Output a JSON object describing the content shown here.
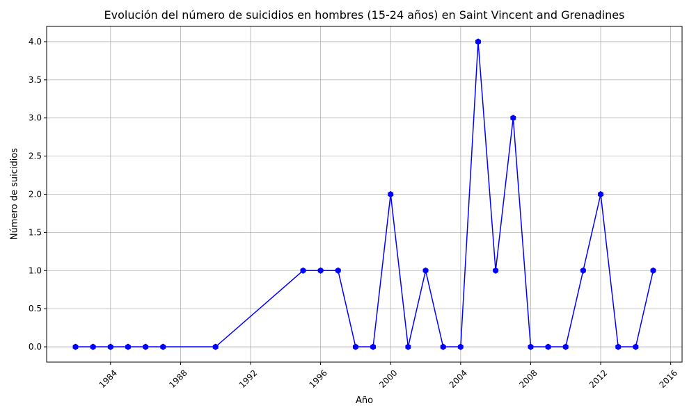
{
  "chart_data": {
    "type": "line",
    "title": "Evolución del número de suicidios en hombres (15-24 años) en Saint Vincent and Grenadines",
    "xlabel": "Año",
    "ylabel": "Número de suicidios",
    "x": [
      1982,
      1983,
      1984,
      1985,
      1986,
      1987,
      1990,
      1995,
      1996,
      1997,
      1998,
      1999,
      2000,
      2001,
      2002,
      2003,
      2004,
      2005,
      2006,
      2007,
      2008,
      2009,
      2010,
      2011,
      2012,
      2013,
      2014,
      2015
    ],
    "series": [
      {
        "values": [
          0,
          0,
          0,
          0,
          0,
          0,
          0,
          1,
          1,
          1,
          0,
          0,
          2,
          0,
          1,
          0,
          0,
          4,
          1,
          3,
          0,
          0,
          0,
          1,
          2,
          0,
          0,
          1
        ],
        "color": "#0000ff",
        "marker": "hexagon"
      }
    ],
    "xlim": [
      1980.35,
      2016.65
    ],
    "ylim": [
      -0.2,
      4.2
    ],
    "xticks": [
      "1984",
      "1988",
      "1992",
      "1996",
      "2000",
      "2004",
      "2008",
      "2012",
      "2016"
    ],
    "yticks": [
      "0.0",
      "0.5",
      "1.0",
      "1.5",
      "2.0",
      "2.5",
      "3.0",
      "3.5",
      "4.0"
    ],
    "grid": true,
    "legend": "none"
  }
}
